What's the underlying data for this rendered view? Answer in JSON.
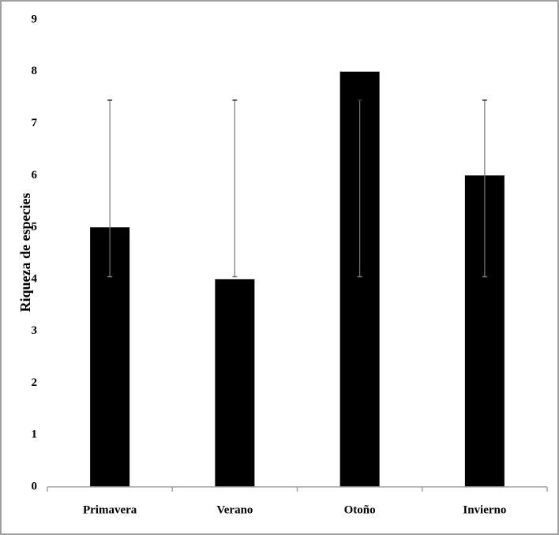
{
  "chart_data": {
    "type": "bar",
    "y_label": "Riqueza de especies",
    "categories": [
      "Primavera",
      "Verano",
      "Otoño",
      "Invierno"
    ],
    "values": [
      5,
      4,
      8,
      6
    ],
    "color": "#000000",
    "error_low": [
      4.05,
      4.05,
      4.05,
      4.05
    ],
    "error_high": [
      7.45,
      7.45,
      7.45,
      7.45
    ],
    "ylim": [
      0,
      9
    ],
    "yticks": [
      0,
      1,
      2,
      3,
      4,
      5,
      6,
      7,
      8,
      9
    ],
    "grid": false
  }
}
